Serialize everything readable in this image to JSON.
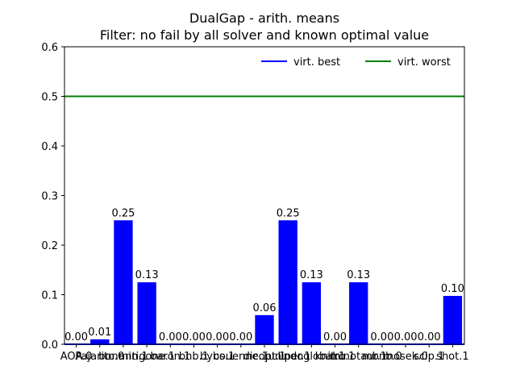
{
  "chart_data": {
    "type": "bar",
    "title": "DualGap - arith. means",
    "subtitle": "Filter: no fail by all solver and known optimal value",
    "xlabel": "",
    "ylabel": "",
    "ylim": [
      0,
      0.6
    ],
    "yticks": [
      "0.0",
      "0.1",
      "0.2",
      "0.3",
      "0.4",
      "0.5",
      "0.6"
    ],
    "grid": false,
    "legend_position": "top-right",
    "categories": [
      "AOA.0",
      "Pajarito.0",
      "bonmin.1",
      "antigone.1",
      "baron.1",
      "bnb.1",
      "bybs.1",
      "couenne.1",
      "dicopt.1",
      "juniper.1",
      "lindoglobal.1",
      "knitro.1",
      "minotaur.1",
      "mbnb.0",
      "mosek.0",
      "scip.1",
      "shot.1"
    ],
    "category_labels": [
      "AOA.0",
      "Pajarito.0",
      "bonmin.1",
      "antigone.1",
      "baron.1",
      "bnb.1",
      "bybs.1",
      "couenne.1",
      "dicopt.1",
      "juniper.1",
      "lindoglobal.1",
      "knitro.1",
      "minotaur.1",
      "mbnb.0",
      "mosek.0",
      "scip.1",
      "shot.1"
    ],
    "values": [
      0.0,
      0.01,
      0.25,
      0.125,
      0.0,
      0.0,
      0.0,
      0.0,
      0.0588,
      0.25,
      0.125,
      0.0,
      0.125,
      0.0,
      0.0,
      0.0,
      0.0976
    ],
    "value_labels": [
      "0.00",
      "0.01",
      "0.25",
      "0.13",
      "0.00",
      "0.00",
      "0.00",
      "0.00",
      "0.06",
      "0.25",
      "0.13",
      "0.00",
      "0.13",
      "0.00",
      "0.00",
      "0.00",
      "0.10"
    ],
    "bar_color": "#0000ff",
    "reference_lines": [
      {
        "name": "virt. best",
        "value": 0.0,
        "color": "#0000ff"
      },
      {
        "name": "virt. worst",
        "value": 0.5,
        "color": "#008000"
      }
    ]
  }
}
